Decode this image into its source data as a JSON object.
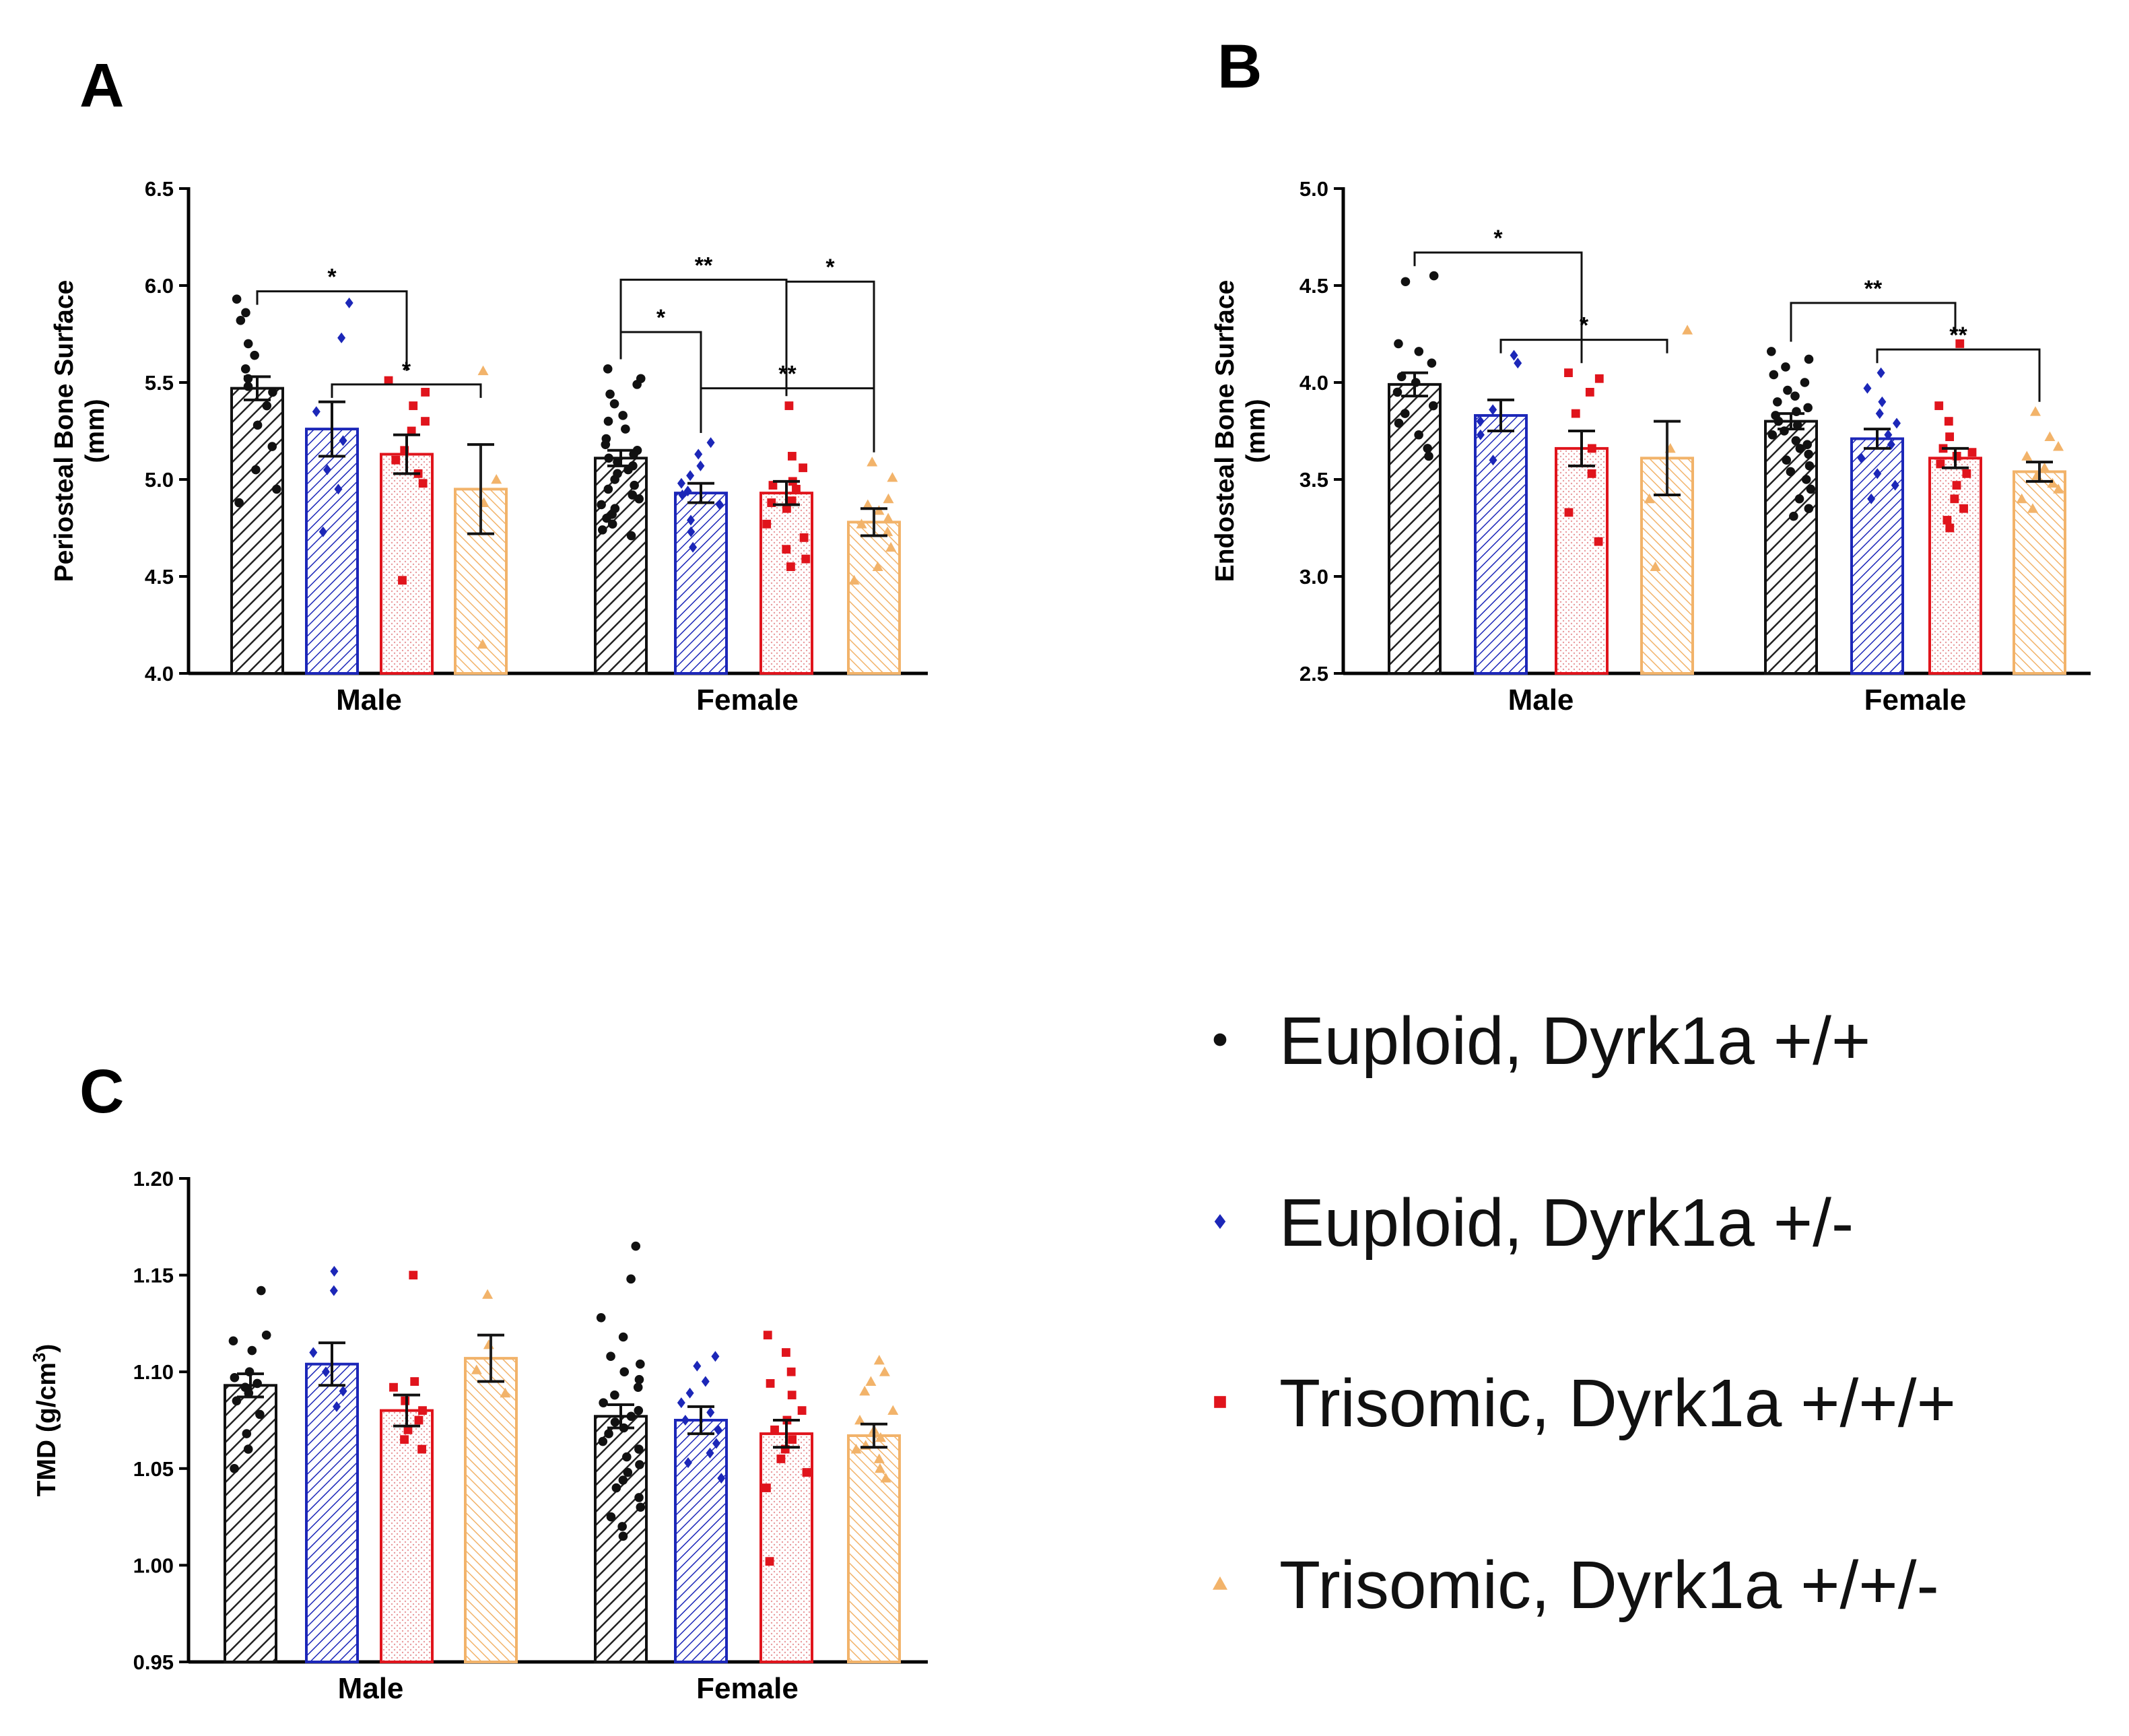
{
  "legend": {
    "entries": [
      {
        "label": "Euploid, Dyrk1a +/+",
        "color": "#111111",
        "marker": "circle"
      },
      {
        "label": "Euploid, Dyrk1a +/-",
        "color": "#1c27b8",
        "marker": "diamond"
      },
      {
        "label": "Trisomic, Dyrk1a +/+/+",
        "color": "#e0141c",
        "marker": "square"
      },
      {
        "label": "Trisomic, Dyrk1a +/+/-",
        "color": "#f2b36a",
        "marker": "triangle"
      }
    ]
  },
  "chart_data": [
    {
      "panel": "A",
      "type": "bar",
      "ylabel": "Periosteal Bone Surface (mm)",
      "ylim": [
        4.0,
        6.5
      ],
      "ticks": [
        "4.0",
        "4.5",
        "5.0",
        "5.5",
        "6.0",
        "6.5"
      ],
      "categories": [
        "Male",
        "Female"
      ],
      "series": [
        {
          "name": "Euploid, Dyrk1a +/+",
          "values": [
            5.47,
            5.11
          ],
          "sem": [
            0.06,
            0.04
          ],
          "points": [
            [
              5.93,
              5.86,
              5.82,
              5.7,
              5.64,
              5.57,
              5.52,
              5.48,
              5.45,
              5.38,
              5.28,
              5.17,
              5.05,
              4.95,
              4.88
            ],
            [
              5.57,
              5.52,
              5.49,
              5.44,
              5.39,
              5.33,
              5.3,
              5.26,
              5.21,
              5.18,
              5.15,
              5.13,
              5.11,
              5.09,
              5.07,
              5.05,
              5.03,
              5.0,
              4.97,
              4.95,
              4.92,
              4.9,
              4.87,
              4.85,
              4.82,
              4.8,
              4.77,
              4.74,
              4.71
            ]
          ]
        },
        {
          "name": "Euploid, Dyrk1a +/-",
          "values": [
            5.26,
            4.93
          ],
          "sem": [
            0.14,
            0.05
          ],
          "points": [
            [
              5.91,
              5.73,
              5.35,
              5.2,
              5.05,
              4.95,
              4.73
            ],
            [
              5.19,
              5.13,
              5.07,
              5.02,
              4.98,
              4.94,
              4.92,
              4.87,
              4.79,
              4.73,
              4.65
            ]
          ]
        },
        {
          "name": "Trisomic, Dyrk1a +/+/+",
          "values": [
            5.13,
            4.93
          ],
          "sem": [
            0.1,
            0.06
          ],
          "points": [
            [
              5.51,
              5.45,
              5.38,
              5.3,
              5.25,
              5.15,
              5.1,
              5.03,
              4.98,
              4.48
            ],
            [
              5.38,
              5.12,
              5.06,
              4.99,
              4.97,
              4.95,
              4.89,
              4.88,
              4.85,
              4.77,
              4.7,
              4.64,
              4.59,
              4.55
            ]
          ]
        },
        {
          "name": "Trisomic, Dyrk1a +/+/-",
          "values": [
            4.95,
            4.78
          ],
          "sem": [
            0.23,
            0.07
          ],
          "points": [
            [
              5.56,
              5.0,
              4.88,
              4.15
            ],
            [
              5.09,
              5.01,
              4.9,
              4.87,
              4.84,
              4.8,
              4.77,
              4.73,
              4.65,
              4.55,
              4.48
            ]
          ]
        }
      ],
      "significance": [
        {
          "label": "*",
          "from": [
            0,
            0
          ],
          "to": [
            0,
            2
          ],
          "y": 5.97
        },
        {
          "label": "*",
          "from": [
            0,
            1
          ],
          "to": [
            0,
            3
          ],
          "y": 5.49
        },
        {
          "label": "**",
          "from": [
            1,
            0
          ],
          "to": [
            1,
            2
          ],
          "y": 6.03
        },
        {
          "label": "*",
          "from": [
            1,
            2
          ],
          "to": [
            1,
            3
          ],
          "y": 6.02
        },
        {
          "label": "*",
          "from": [
            1,
            0
          ],
          "to": [
            1,
            1
          ],
          "y": 5.76
        },
        {
          "label": "**",
          "from": [
            1,
            1
          ],
          "to": [
            1,
            3
          ],
          "y": 5.47
        }
      ]
    },
    {
      "panel": "B",
      "type": "bar",
      "ylabel": "Endosteal Bone Surface (mm)",
      "ylim": [
        2.5,
        5.0
      ],
      "ticks": [
        "2.5",
        "3.0",
        "3.5",
        "4.0",
        "4.5",
        "5.0"
      ],
      "categories": [
        "Male",
        "Female"
      ],
      "series": [
        {
          "name": "Euploid, Dyrk1a +/+",
          "values": [
            3.99,
            3.8
          ],
          "sem": [
            0.06,
            0.04
          ],
          "points": [
            [
              4.55,
              4.52,
              4.2,
              4.16,
              4.1,
              4.03,
              4.0,
              3.95,
              3.88,
              3.84,
              3.79,
              3.73,
              3.66,
              3.62
            ],
            [
              4.16,
              4.12,
              4.08,
              4.04,
              4.0,
              3.96,
              3.93,
              3.9,
              3.87,
              3.85,
              3.83,
              3.8,
              3.78,
              3.75,
              3.73,
              3.7,
              3.68,
              3.66,
              3.63,
              3.6,
              3.57,
              3.54,
              3.5,
              3.45,
              3.4,
              3.35,
              3.31
            ]
          ]
        },
        {
          "name": "Euploid, Dyrk1a +/-",
          "values": [
            3.83,
            3.71
          ],
          "sem": [
            0.08,
            0.05
          ],
          "points": [
            [
              4.14,
              4.1,
              3.86,
              3.8,
              3.73,
              3.6
            ],
            [
              4.05,
              3.97,
              3.9,
              3.84,
              3.79,
              3.73,
              3.68,
              3.61,
              3.53,
              3.47,
              3.4
            ]
          ]
        },
        {
          "name": "Trisomic, Dyrk1a +/+/+",
          "values": [
            3.66,
            3.61
          ],
          "sem": [
            0.09,
            0.05
          ],
          "points": [
            [
              4.05,
              4.02,
              3.95,
              3.84,
              3.66,
              3.53,
              3.33,
              3.18
            ],
            [
              4.2,
              3.88,
              3.8,
              3.72,
              3.66,
              3.64,
              3.62,
              3.58,
              3.53,
              3.47,
              3.4,
              3.35,
              3.29,
              3.25
            ]
          ]
        },
        {
          "name": "Trisomic, Dyrk1a +/+/-",
          "values": [
            3.61,
            3.54
          ],
          "sem": [
            0.19,
            0.05
          ],
          "points": [
            [
              4.27,
              3.66,
              3.4,
              3.05
            ],
            [
              3.85,
              3.72,
              3.67,
              3.62,
              3.56,
              3.52,
              3.48,
              3.45,
              3.4,
              3.35
            ]
          ]
        }
      ],
      "significance": [
        {
          "label": "*",
          "from": [
            0,
            0
          ],
          "to": [
            0,
            2
          ],
          "y": 4.67
        },
        {
          "label": "*",
          "from": [
            0,
            1
          ],
          "to": [
            0,
            3
          ],
          "y": 4.22
        },
        {
          "label": "**",
          "from": [
            1,
            0
          ],
          "to": [
            1,
            2
          ],
          "y": 4.41
        },
        {
          "label": "**",
          "from": [
            1,
            1
          ],
          "to": [
            1,
            3
          ],
          "y": 4.17
        }
      ]
    },
    {
      "panel": "C",
      "type": "bar",
      "ylabel": "TMD (g/cm3)",
      "ylim": [
        0.95,
        1.2
      ],
      "ticks": [
        "0.95",
        "1.00",
        "1.05",
        "1.10",
        "1.15",
        "1.20"
      ],
      "categories": [
        "Male",
        "Female"
      ],
      "series": [
        {
          "name": "Euploid, Dyrk1a +/+",
          "values": [
            1.093,
            1.077
          ],
          "sem": [
            0.006,
            0.006
          ],
          "points": [
            [
              1.142,
              1.119,
              1.116,
              1.111,
              1.1,
              1.097,
              1.094,
              1.092,
              1.089,
              1.085,
              1.078,
              1.068,
              1.06,
              1.05
            ],
            [
              1.165,
              1.148,
              1.128,
              1.118,
              1.108,
              1.104,
              1.1,
              1.096,
              1.092,
              1.088,
              1.084,
              1.08,
              1.077,
              1.074,
              1.071,
              1.068,
              1.064,
              1.06,
              1.056,
              1.052,
              1.048,
              1.044,
              1.04,
              1.035,
              1.03,
              1.025,
              1.02,
              1.015
            ]
          ]
        },
        {
          "name": "Euploid, Dyrk1a +/-",
          "values": [
            1.104,
            1.075
          ],
          "sem": [
            0.011,
            0.007
          ],
          "points": [
            [
              1.152,
              1.142,
              1.11,
              1.1,
              1.09,
              1.082
            ],
            [
              1.108,
              1.103,
              1.095,
              1.089,
              1.084,
              1.079,
              1.075,
              1.07,
              1.063,
              1.058,
              1.053,
              1.045
            ]
          ]
        },
        {
          "name": "Trisomic, Dyrk1a +/+/+",
          "values": [
            1.08,
            1.068
          ],
          "sem": [
            0.008,
            0.007
          ],
          "points": [
            [
              1.15,
              1.095,
              1.092,
              1.085,
              1.08,
              1.075,
              1.07,
              1.065,
              1.06
            ],
            [
              1.119,
              1.11,
              1.1,
              1.094,
              1.088,
              1.08,
              1.075,
              1.07,
              1.065,
              1.06,
              1.055,
              1.048,
              1.04,
              1.002
            ]
          ]
        },
        {
          "name": "Trisomic, Dyrk1a +/+/-",
          "values": [
            1.107,
            1.067
          ],
          "sem": [
            0.012,
            0.006
          ],
          "points": [
            [
              1.14,
              1.114,
              1.101,
              1.089
            ],
            [
              1.106,
              1.1,
              1.095,
              1.09,
              1.08,
              1.075,
              1.07,
              1.066,
              1.062,
              1.06,
              1.055,
              1.05,
              1.045
            ]
          ]
        }
      ],
      "significance": []
    }
  ]
}
